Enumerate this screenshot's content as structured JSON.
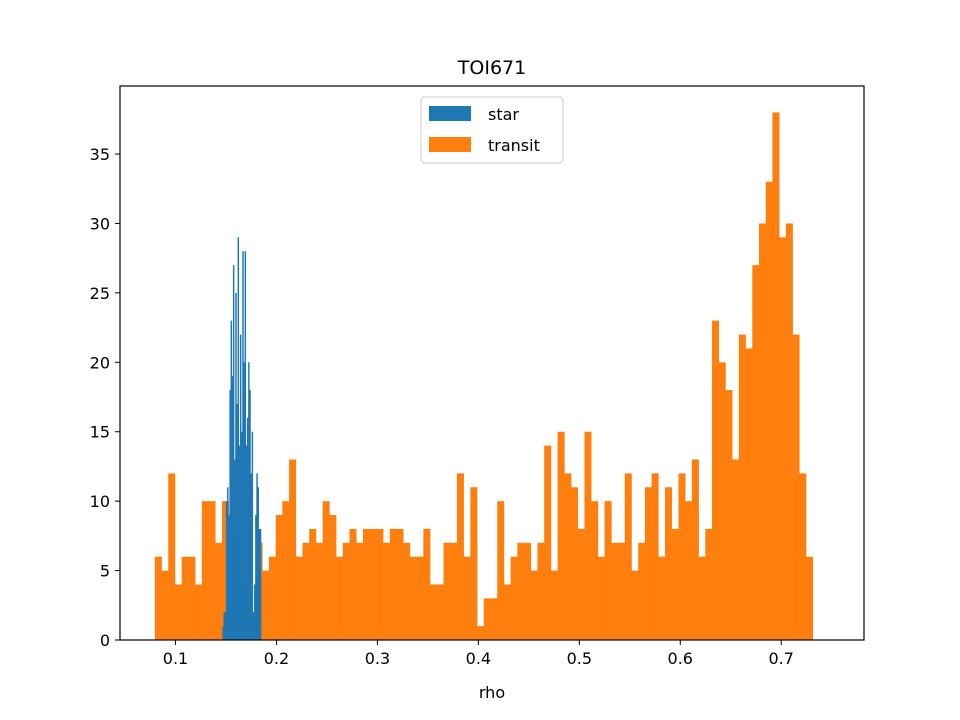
{
  "chart_data": {
    "type": "bar",
    "title": "TOI671",
    "xlabel": "rho",
    "ylabel": "",
    "xlim": [
      0.045,
      0.782
    ],
    "ylim": [
      0,
      39.9
    ],
    "grid": false,
    "legend_position": "top-center",
    "x_ticks": [
      0.1,
      0.2,
      0.3,
      0.4,
      0.5,
      0.6,
      0.7
    ],
    "x_tick_labels": [
      "0.1",
      "0.2",
      "0.3",
      "0.4",
      "0.5",
      "0.6",
      "0.7"
    ],
    "y_ticks": [
      0,
      5,
      10,
      15,
      20,
      25,
      30,
      35
    ],
    "y_tick_labels": [
      "0",
      "5",
      "10",
      "15",
      "20",
      "25",
      "30",
      "35"
    ],
    "series": [
      {
        "name": "transit",
        "color": "#ff7f0e",
        "bin_start": 0.0795,
        "bin_width": 0.00665,
        "values": [
          6,
          5,
          12,
          4,
          6,
          6,
          4,
          10,
          10,
          7,
          10,
          8,
          4,
          10,
          2,
          7,
          5,
          6,
          9,
          10,
          13,
          6,
          7,
          8,
          7,
          10,
          9,
          6,
          7,
          8,
          7,
          8,
          8,
          8,
          7,
          8,
          8,
          7,
          6,
          6,
          8,
          4,
          4,
          7,
          7,
          12,
          6,
          11,
          1,
          3,
          3,
          10,
          4,
          6,
          7,
          7,
          5,
          7,
          14,
          5,
          15,
          12,
          11,
          8,
          15,
          10,
          6,
          10,
          7,
          7,
          12,
          5,
          7,
          11,
          12,
          6,
          11,
          8,
          12,
          10,
          13,
          6,
          8,
          23,
          20,
          18,
          13,
          22,
          21,
          27,
          30,
          33,
          38,
          29,
          30,
          22,
          12,
          6
        ]
      },
      {
        "name": "star",
        "color": "#1f77b4",
        "bin_start": 0.1464,
        "bin_width": 0.00116,
        "values": [
          1,
          2,
          2,
          10,
          11,
          9,
          18,
          23,
          19,
          27,
          13,
          25,
          17,
          29,
          14,
          22,
          15,
          28,
          20,
          28,
          14,
          16,
          20,
          18,
          12,
          15,
          2,
          4,
          9,
          12,
          11,
          8,
          8
        ]
      }
    ]
  }
}
